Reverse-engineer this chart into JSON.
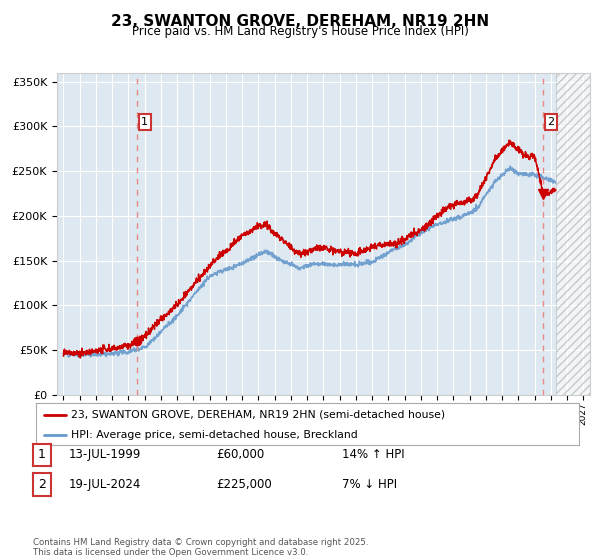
{
  "title": "23, SWANTON GROVE, DEREHAM, NR19 2HN",
  "subtitle": "Price paid vs. HM Land Registry's House Price Index (HPI)",
  "ylim": [
    0,
    360000
  ],
  "xlim_start": 1994.6,
  "xlim_end": 2027.4,
  "sale1_year": 1999.54,
  "sale1_price": 60000,
  "sale2_year": 2024.54,
  "sale2_price": 225000,
  "hatch_start": 2025.3,
  "legend_label1": "23, SWANTON GROVE, DEREHAM, NR19 2HN (semi-detached house)",
  "legend_label2": "HPI: Average price, semi-detached house, Breckland",
  "line_color_price": "#cc0000",
  "line_color_hpi": "#6699cc",
  "dashed_line_color": "#e88888",
  "annotation1_label": "1",
  "annotation1_date": "13-JUL-1999",
  "annotation1_price": "£60,000",
  "annotation1_hpi": "14% ↑ HPI",
  "annotation2_label": "2",
  "annotation2_date": "19-JUL-2024",
  "annotation2_price": "£225,000",
  "annotation2_hpi": "7% ↓ HPI",
  "footnote": "Contains HM Land Registry data © Crown copyright and database right 2025.\nThis data is licensed under the Open Government Licence v3.0.",
  "bg_color": "#ffffff",
  "plot_bg_color": "#dde8f0",
  "marker1_y": 305000,
  "marker2_y": 305000
}
